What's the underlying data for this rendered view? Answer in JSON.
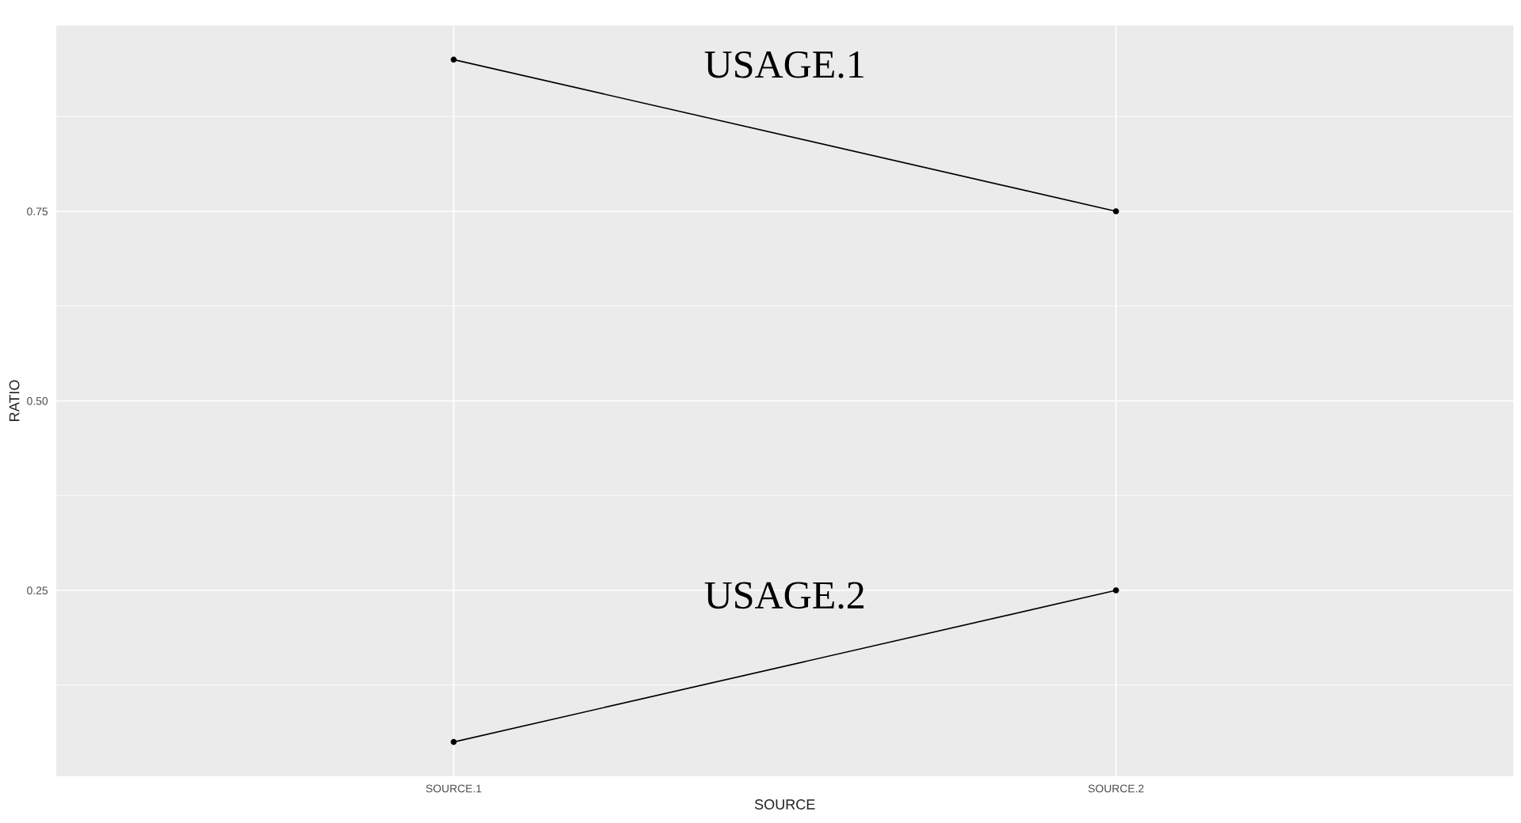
{
  "chart_data": {
    "type": "line",
    "xlabel": "SOURCE",
    "ylabel": "RATIO",
    "categories": [
      "SOURCE.1",
      "SOURCE.2"
    ],
    "series": [
      {
        "name": "USAGE.1",
        "color": "#000000",
        "values": [
          0.95,
          0.75
        ]
      },
      {
        "name": "USAGE.2",
        "color": "#000000",
        "values": [
          0.05,
          0.25
        ]
      }
    ],
    "ylim": [
      0.005,
      0.995
    ],
    "yticks": [
      {
        "value": 0.25,
        "label": "0.25"
      },
      {
        "value": 0.5,
        "label": "0.50"
      },
      {
        "value": 0.75,
        "label": "0.75"
      }
    ],
    "grid": true,
    "marker": "circle",
    "line_style": "solid",
    "legend": false
  }
}
